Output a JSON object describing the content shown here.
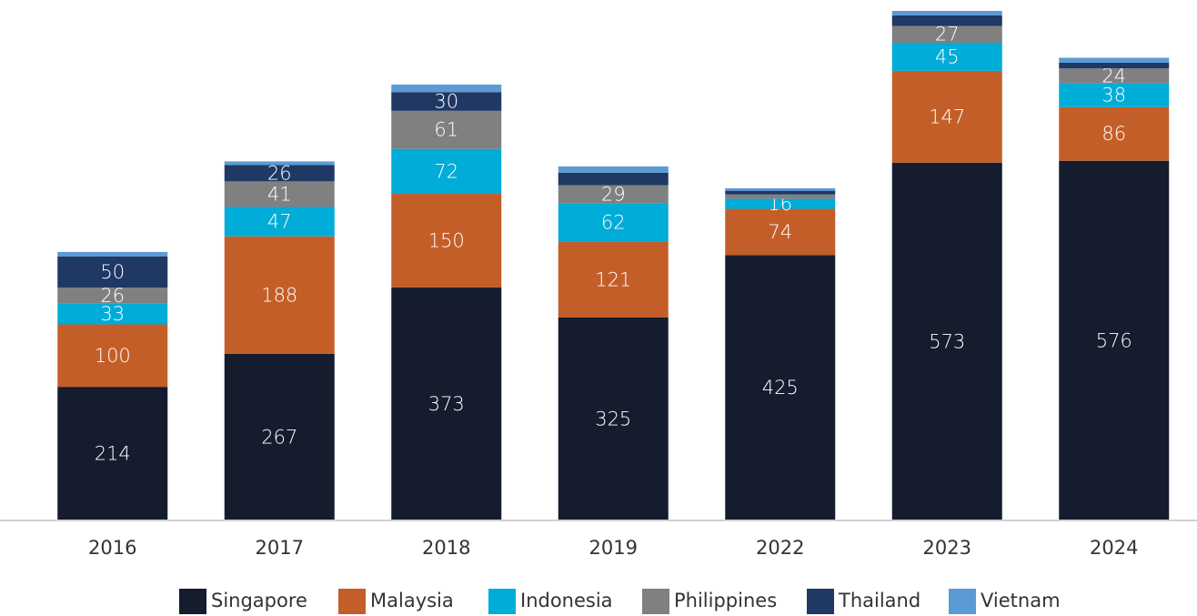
{
  "chart_data": {
    "type": "stacked_bar",
    "categories": [
      "2016",
      "2017",
      "2018",
      "2019",
      "2022",
      "2023",
      "2024"
    ],
    "series": [
      {
        "name": "Singapore",
        "color": "#141c2e",
        "values": [
          214,
          267,
          373,
          325,
          425,
          573,
          576
        ],
        "value_labels": [
          "214",
          "267",
          "373",
          "325",
          "425",
          "573",
          "576"
        ]
      },
      {
        "name": "Malaysia",
        "color": "#c45e28",
        "values": [
          100,
          188,
          150,
          121,
          74,
          147,
          86
        ],
        "value_labels": [
          "100",
          "188",
          "150",
          "121",
          "74",
          "147",
          "86"
        ]
      },
      {
        "name": "Indonesia",
        "color": "#00acd8",
        "values": [
          33,
          47,
          72,
          62,
          16,
          45,
          38
        ],
        "value_labels": [
          "33",
          "47",
          "72",
          "62",
          "16",
          "45",
          "38"
        ]
      },
      {
        "name": "Philippines",
        "color": "#808080",
        "values": [
          26,
          41,
          61,
          29,
          7,
          27,
          24
        ],
        "value_labels": [
          "26",
          "41",
          "61",
          "29",
          null,
          "27",
          "24"
        ]
      },
      {
        "name": "Thailand",
        "color": "#1f3864",
        "values": [
          50,
          26,
          30,
          20,
          6,
          17,
          9
        ],
        "value_labels": [
          "50",
          "26",
          "30",
          null,
          null,
          null,
          null
        ]
      },
      {
        "name": "Vietnam",
        "color": "#5b9bd5",
        "values": [
          7,
          6,
          12,
          10,
          4,
          7,
          8
        ],
        "value_labels": [
          null,
          null,
          null,
          null,
          null,
          null,
          null
        ]
      }
    ]
  }
}
